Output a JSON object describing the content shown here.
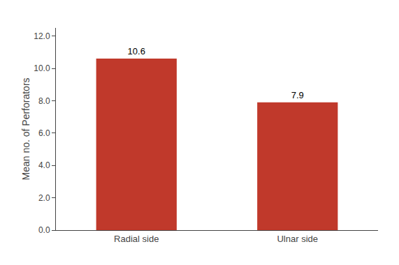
{
  "chart_data": {
    "type": "bar",
    "categories": [
      "Radial side",
      "Ulnar side"
    ],
    "values": [
      10.6,
      7.9
    ],
    "color": "#C0392B",
    "ylabel": "Mean no. of Perforators",
    "ylim": [
      0,
      12.5
    ],
    "yticks": [
      {
        "value": 0.0,
        "label": "0.0"
      },
      {
        "value": 2.0,
        "label": "2.0"
      },
      {
        "value": 4.0,
        "label": "4.0"
      },
      {
        "value": 6.0,
        "label": "6.0"
      },
      {
        "value": 8.0,
        "label": "8.0"
      },
      {
        "value": 10.0,
        "label": "10.0"
      },
      {
        "value": 12.0,
        "label": "12.0"
      }
    ],
    "grid": false,
    "data_labels": true
  }
}
